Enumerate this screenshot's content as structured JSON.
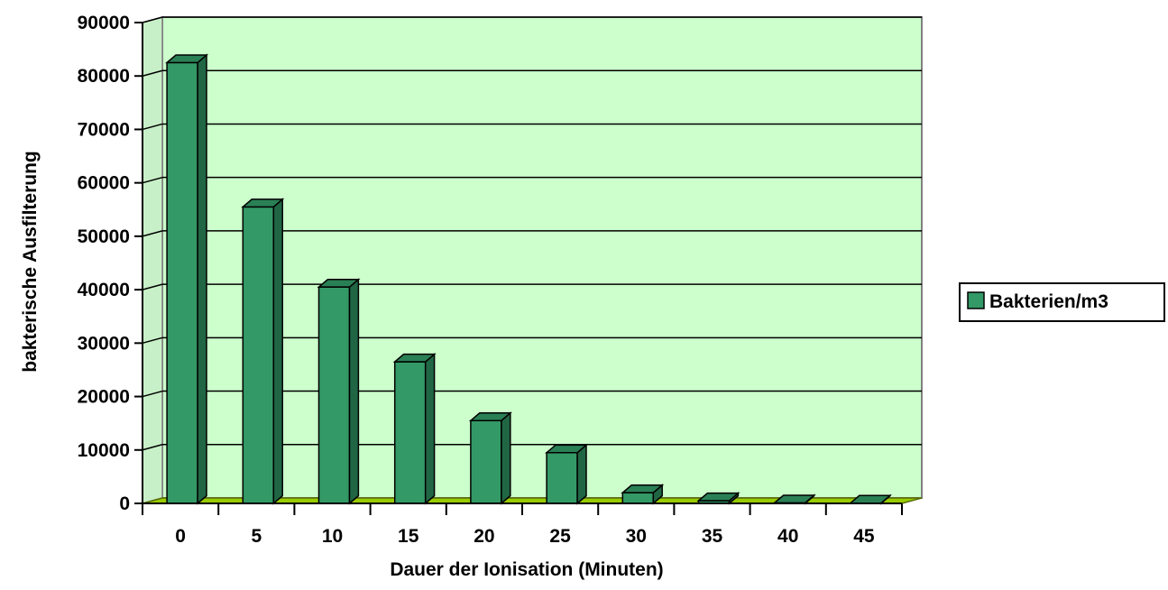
{
  "chart_data": {
    "type": "bar",
    "categories": [
      "0",
      "5",
      "10",
      "15",
      "20",
      "25",
      "30",
      "35",
      "40",
      "45"
    ],
    "series": [
      {
        "name": "Bakterien/m3",
        "values": [
          82500,
          55500,
          40500,
          26500,
          15500,
          9500,
          2000,
          500,
          100,
          50
        ]
      }
    ],
    "xlabel": "Dauer der Ionisation (Minuten)",
    "ylabel": "bakterische Ausfilterung",
    "ylim": [
      0,
      90000
    ],
    "yticks": [
      0,
      10000,
      20000,
      30000,
      40000,
      50000,
      60000,
      70000,
      80000,
      90000
    ],
    "grid": true,
    "legend_position": "right",
    "colors": {
      "bar_front": "#339966",
      "bar_side": "#216644",
      "bar_top": "#2a8055",
      "plot_back": "#ccffcc",
      "plot_side": "#c8f0c8",
      "floor": "#99cc00",
      "gridline": "#000000"
    }
  }
}
